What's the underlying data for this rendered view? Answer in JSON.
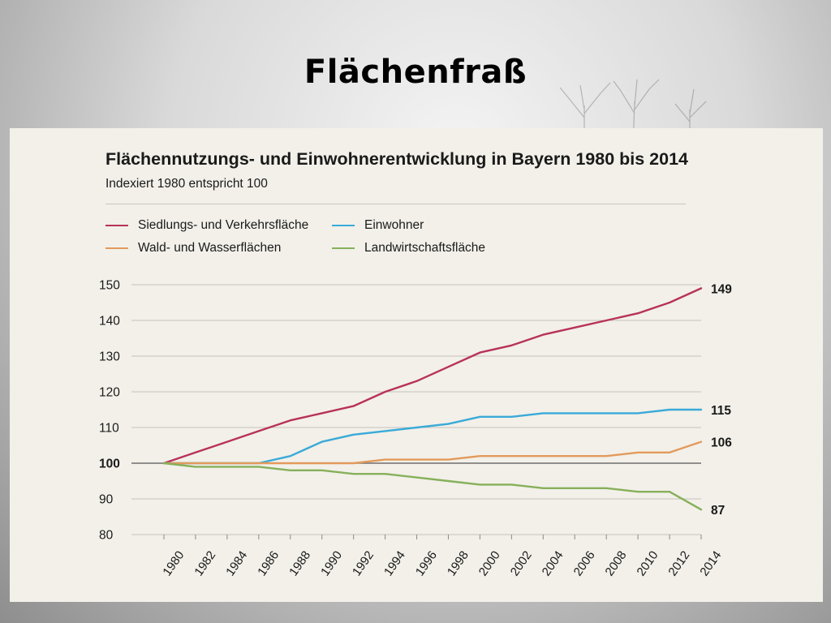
{
  "slide": {
    "title": "Flächenfraß"
  },
  "chart_data": {
    "type": "line",
    "title": "Flächennutzungs- und Einwohnerentwicklung in Bayern 1980 bis 2014",
    "subtitle": "Indexiert 1980 entspricht 100",
    "x": [
      1980,
      1982,
      1984,
      1986,
      1988,
      1990,
      1992,
      1994,
      1996,
      1998,
      2000,
      2002,
      2004,
      2006,
      2008,
      2010,
      2012,
      2014
    ],
    "yticks": [
      80,
      90,
      100,
      110,
      120,
      130,
      140,
      150
    ],
    "ylim": [
      80,
      150
    ],
    "xlabel": "",
    "ylabel": "",
    "grid": true,
    "legend_position": "top-left",
    "series": [
      {
        "name": "Siedlungs- und Verkehrsfläche",
        "color": "#b8325a",
        "end_label": "149",
        "values": [
          100,
          103,
          106,
          109,
          112,
          114,
          116,
          120,
          123,
          127,
          131,
          133,
          136,
          138,
          140,
          142,
          145,
          149
        ]
      },
      {
        "name": "Einwohner",
        "color": "#3aaad8",
        "end_label": "115",
        "values": [
          100,
          100,
          100,
          100,
          102,
          106,
          108,
          109,
          110,
          111,
          113,
          113,
          114,
          114,
          114,
          114,
          115,
          115
        ]
      },
      {
        "name": "Wald- und Wasserflächen",
        "color": "#e39a5c",
        "end_label": "106",
        "values": [
          100,
          100,
          100,
          100,
          100,
          100,
          100,
          101,
          101,
          101,
          102,
          102,
          102,
          102,
          102,
          103,
          103,
          106
        ]
      },
      {
        "name": "Landwirtschaftsfläche",
        "color": "#86b05a",
        "end_label": "87",
        "values": [
          100,
          99,
          99,
          99,
          98,
          98,
          97,
          97,
          96,
          95,
          94,
          94,
          93,
          93,
          93,
          92,
          92,
          87
        ]
      }
    ]
  }
}
